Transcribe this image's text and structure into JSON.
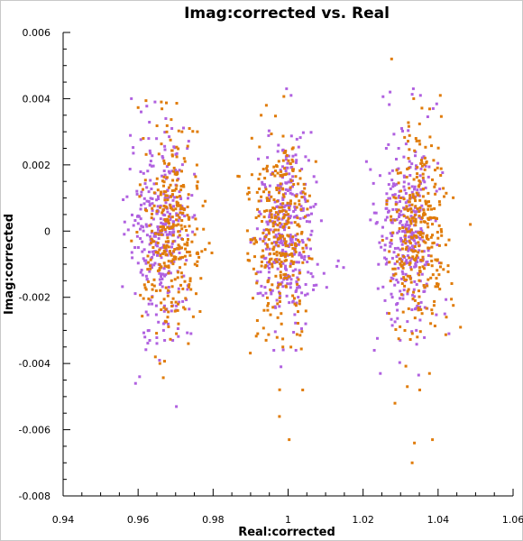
{
  "chart_data": {
    "type": "scatter",
    "title": "Imag:corrected vs. Real",
    "xlabel": "Real:corrected",
    "ylabel": "Imag:corrected",
    "xlim": [
      0.94,
      1.06
    ],
    "ylim": [
      -0.008,
      0.006
    ],
    "x_ticks": [
      "0.94",
      "0.96",
      "0.98",
      "1",
      "1.02",
      "1.04",
      "1.06"
    ],
    "y_ticks": [
      "0.006",
      "0.004",
      "0.002",
      "0",
      "-0.002",
      "-0.004",
      "-0.006",
      "-0.008"
    ],
    "grid": false,
    "colors": {
      "series_1": "#b061e0",
      "series_2": "#e07c0a",
      "axes": "#000000",
      "background": "#ffffff"
    },
    "series": [
      {
        "color": "#b061e0",
        "cluster_centers_x": [
          0.966,
          1.0,
          1.032
        ],
        "points": [
          [
            0.9593,
            -0.0046
          ],
          [
            0.9604,
            -0.0044
          ],
          [
            0.9618,
            -0.0032
          ],
          [
            0.9645,
            0.0039
          ],
          [
            0.9702,
            -0.0053
          ],
          [
            0.9657,
            -0.0039
          ],
          [
            0.9582,
            0.004
          ],
          [
            0.9608,
            0.0036
          ],
          [
            0.9674,
            0.0034
          ],
          [
            0.969,
            0.0031
          ],
          [
            0.9996,
            0.0043
          ],
          [
            1.0008,
            0.0041
          ],
          [
            0.9962,
            -0.0036
          ],
          [
            1.0021,
            -0.0036
          ],
          [
            1.0052,
            -0.0019
          ],
          [
            1.0103,
            -0.0017
          ],
          [
            1.0134,
            -0.0009
          ],
          [
            1.0148,
            -0.0011
          ],
          [
            0.9981,
            -0.0041
          ],
          [
            1.0047,
            -0.0028
          ],
          [
            1.0334,
            0.0043
          ],
          [
            1.0272,
            0.0042
          ],
          [
            1.0353,
            0.0041
          ],
          [
            1.0387,
            0.0037
          ],
          [
            1.023,
            -0.0036
          ],
          [
            1.0246,
            -0.0043
          ],
          [
            1.0299,
            -0.0033
          ],
          [
            1.0342,
            -0.003
          ],
          [
            1.0418,
            -0.0025
          ],
          [
            1.0429,
            -0.0031
          ],
          [
            1.0303,
            0.0031
          ],
          [
            1.0262,
            0.0025
          ],
          [
            1.0209,
            0.0021
          ]
        ]
      },
      {
        "color": "#e07c0a",
        "cluster_centers_x": [
          0.969,
          0.998,
          1.035
        ],
        "points": [
          [
            0.9662,
            0.0039
          ],
          [
            0.9717,
            0.003
          ],
          [
            0.9737,
            0.0031
          ],
          [
            0.9758,
            0.003
          ],
          [
            0.9658,
            -0.004
          ],
          [
            0.9646,
            -0.0038
          ],
          [
            0.9702,
            -0.0031
          ],
          [
            0.9734,
            -0.0034
          ],
          [
            0.9679,
            -0.0026
          ],
          [
            0.9779,
            0.0009
          ],
          [
            0.9942,
            0.0038
          ],
          [
            0.9928,
            0.0035
          ],
          [
            0.9919,
            -0.0031
          ],
          [
            0.9977,
            -0.0056
          ],
          [
            0.9986,
            -0.0035
          ],
          [
            1.0003,
            -0.0063
          ],
          [
            1.0039,
            -0.0048
          ],
          [
            1.0018,
            -0.0022
          ],
          [
            0.9895,
            0.0013
          ],
          [
            1.0074,
            0.0021
          ],
          [
            1.0276,
            0.0052
          ],
          [
            1.0341,
            0.0028
          ],
          [
            1.0335,
            0.004
          ],
          [
            1.0406,
            0.0041
          ],
          [
            1.0486,
            0.0002
          ],
          [
            1.0331,
            -0.007
          ],
          [
            1.0337,
            -0.0064
          ],
          [
            1.0385,
            -0.0063
          ],
          [
            1.0285,
            -0.0052
          ],
          [
            1.0318,
            -0.0047
          ],
          [
            1.0351,
            -0.0048
          ],
          [
            1.0377,
            -0.0043
          ],
          [
            1.0422,
            -0.0026
          ]
        ]
      }
    ]
  }
}
